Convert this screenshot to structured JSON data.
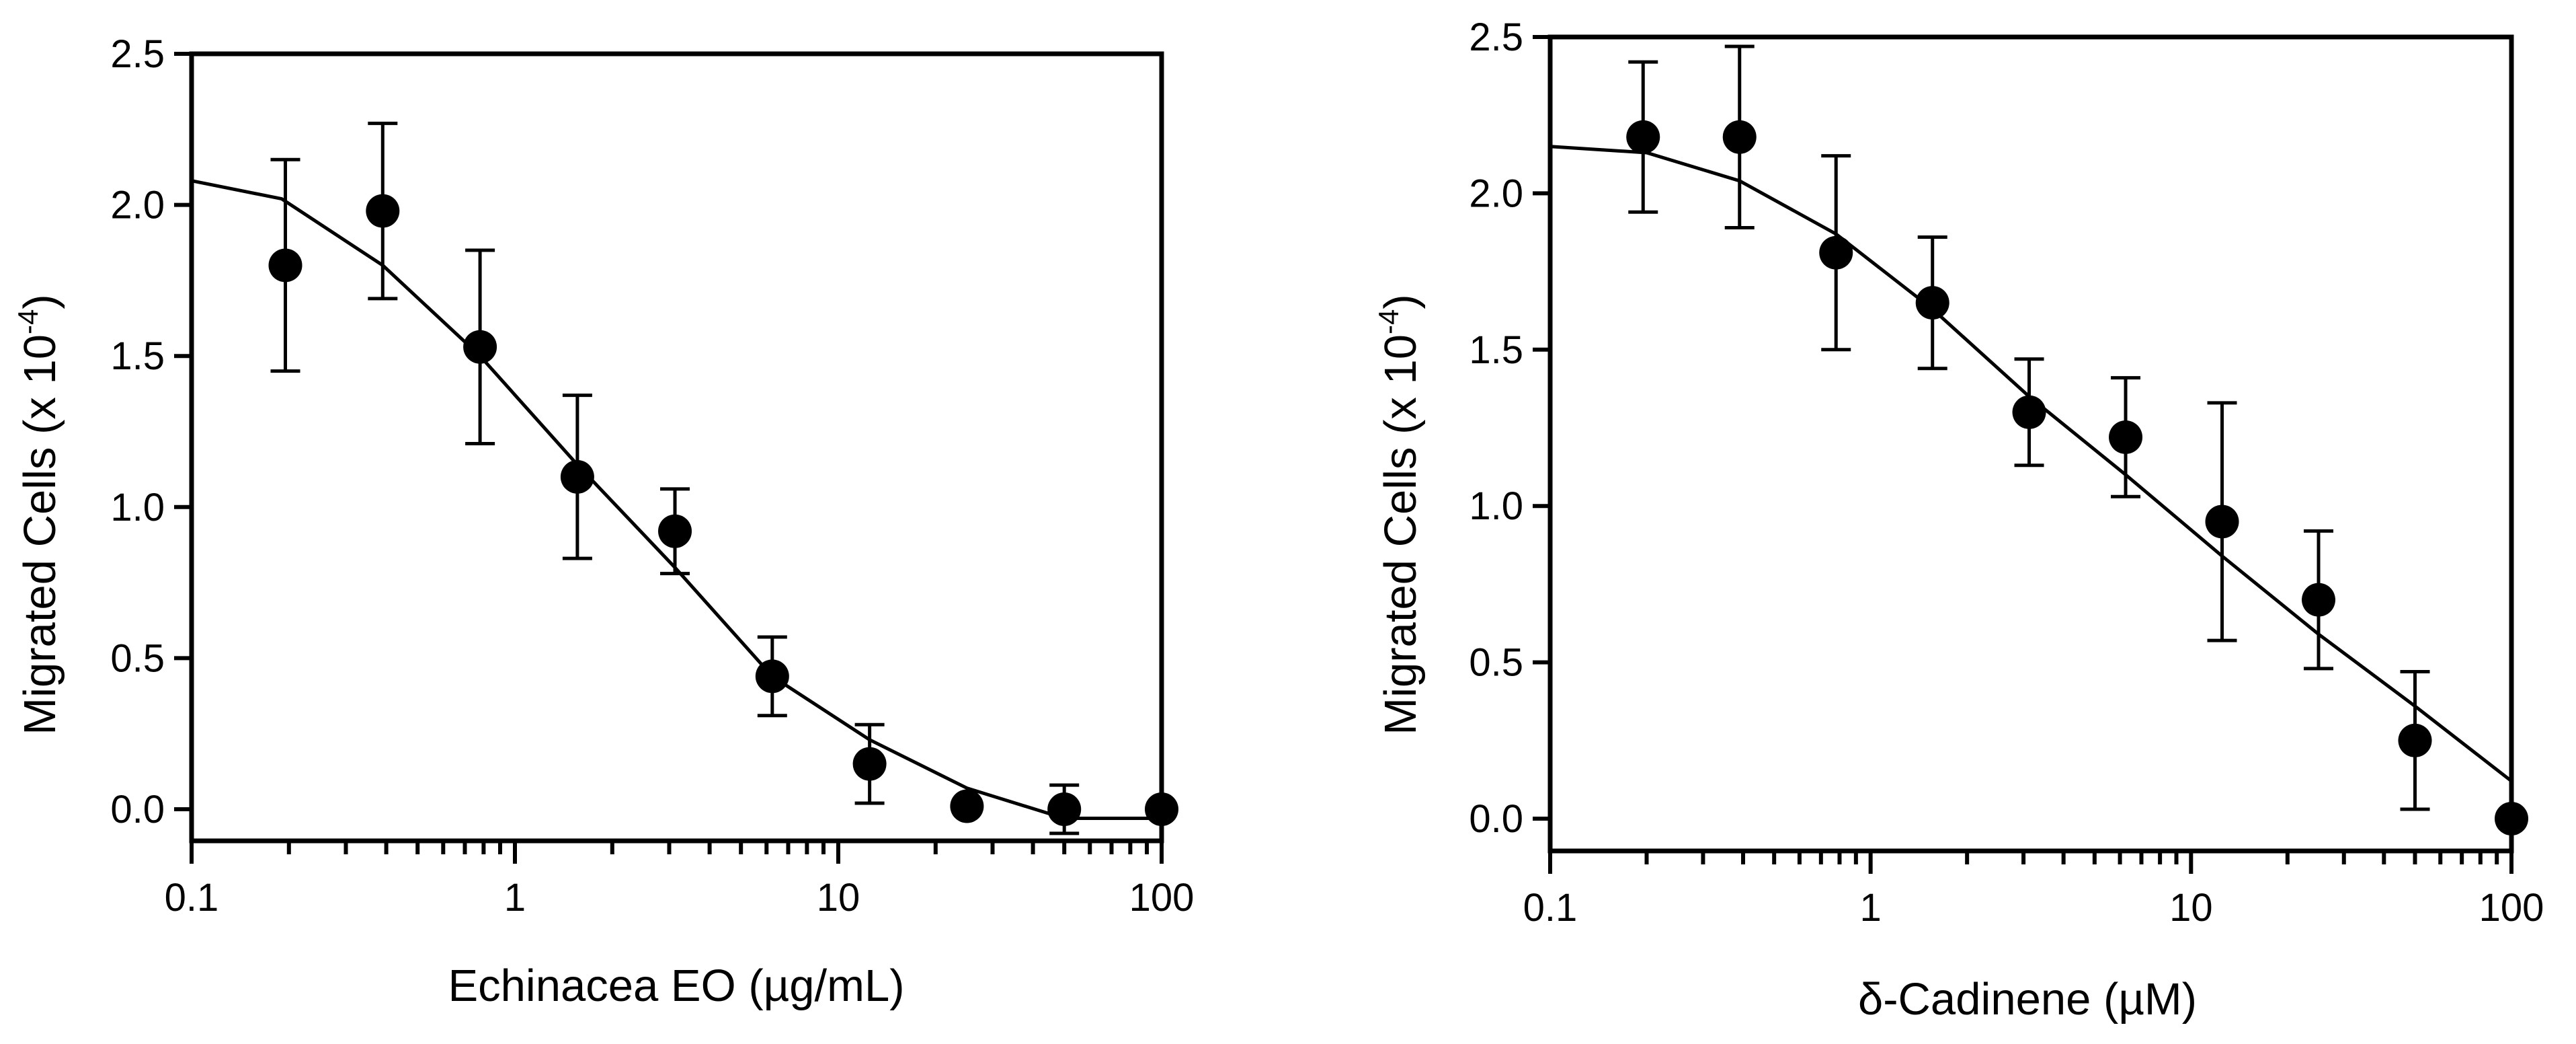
{
  "chart_data": [
    {
      "type": "scatter",
      "title": "",
      "xlabel": "Echinacea EO (µg/mL)",
      "ylabel_main": "Migrated Cells (x 10",
      "ylabel_exponent": "-4",
      "ylabel_close": ")",
      "x_scale": "log",
      "xlim": [
        0.1,
        100
      ],
      "ylim": [
        -0.1,
        2.5
      ],
      "x_ticks": [
        0.1,
        1,
        10,
        100
      ],
      "x_tick_labels": [
        "0.1",
        "1",
        "10",
        "100"
      ],
      "y_ticks": [
        0.0,
        0.5,
        1.0,
        1.5,
        2.0,
        2.5
      ],
      "y_tick_labels": [
        "0.0",
        "0.5",
        "1.0",
        "1.5",
        "2.0",
        "2.5"
      ],
      "series": [
        {
          "name": "data",
          "x": [
            0.195,
            0.39,
            0.78,
            1.56,
            3.125,
            6.25,
            12.5,
            25,
            50,
            100
          ],
          "y": [
            1.8,
            1.98,
            1.53,
            1.1,
            0.92,
            0.44,
            0.15,
            0.01,
            0.0,
            0.0
          ],
          "err": [
            0.35,
            0.29,
            0.32,
            0.27,
            0.14,
            0.13,
            0.13,
            0.0,
            0.08,
            0.0
          ]
        }
      ],
      "fit": {
        "x": [
          0.1,
          0.19,
          0.39,
          0.78,
          1.56,
          3.125,
          6.25,
          12.5,
          25,
          50,
          100
        ],
        "y": [
          2.08,
          2.02,
          1.8,
          1.5,
          1.14,
          0.8,
          0.44,
          0.23,
          0.07,
          -0.03,
          -0.03
        ]
      }
    },
    {
      "type": "scatter",
      "title": "",
      "xlabel": "δ-Cadinene (µM)",
      "ylabel_main": "Migrated Cells (x 10",
      "ylabel_exponent": "-4",
      "ylabel_close": ")",
      "x_scale": "log",
      "xlim": [
        0.1,
        100
      ],
      "ylim": [
        -0.1,
        2.5
      ],
      "x_ticks": [
        0.1,
        1,
        10,
        100
      ],
      "x_tick_labels": [
        "0.1",
        "1",
        "10",
        "100"
      ],
      "y_ticks": [
        0.0,
        0.5,
        1.0,
        1.5,
        2.0,
        2.5
      ],
      "y_tick_labels": [
        "0.0",
        "0.5",
        "1.0",
        "1.5",
        "2.0",
        "2.5"
      ],
      "series": [
        {
          "name": "data",
          "x": [
            0.195,
            0.39,
            0.78,
            1.56,
            3.125,
            6.25,
            12.5,
            25,
            50,
            100
          ],
          "y": [
            2.18,
            2.18,
            1.81,
            1.65,
            1.3,
            1.22,
            0.95,
            0.7,
            0.25,
            0.0
          ],
          "err": [
            0.24,
            0.29,
            0.31,
            0.21,
            0.17,
            0.19,
            0.38,
            0.22,
            0.22,
            0.0
          ]
        }
      ],
      "fit": {
        "x": [
          0.1,
          0.2,
          0.39,
          0.78,
          1.56,
          3.125,
          6.25,
          12.5,
          25,
          50,
          100
        ],
        "y": [
          2.15,
          2.13,
          2.04,
          1.87,
          1.63,
          1.35,
          1.1,
          0.84,
          0.59,
          0.36,
          0.12
        ]
      }
    }
  ]
}
